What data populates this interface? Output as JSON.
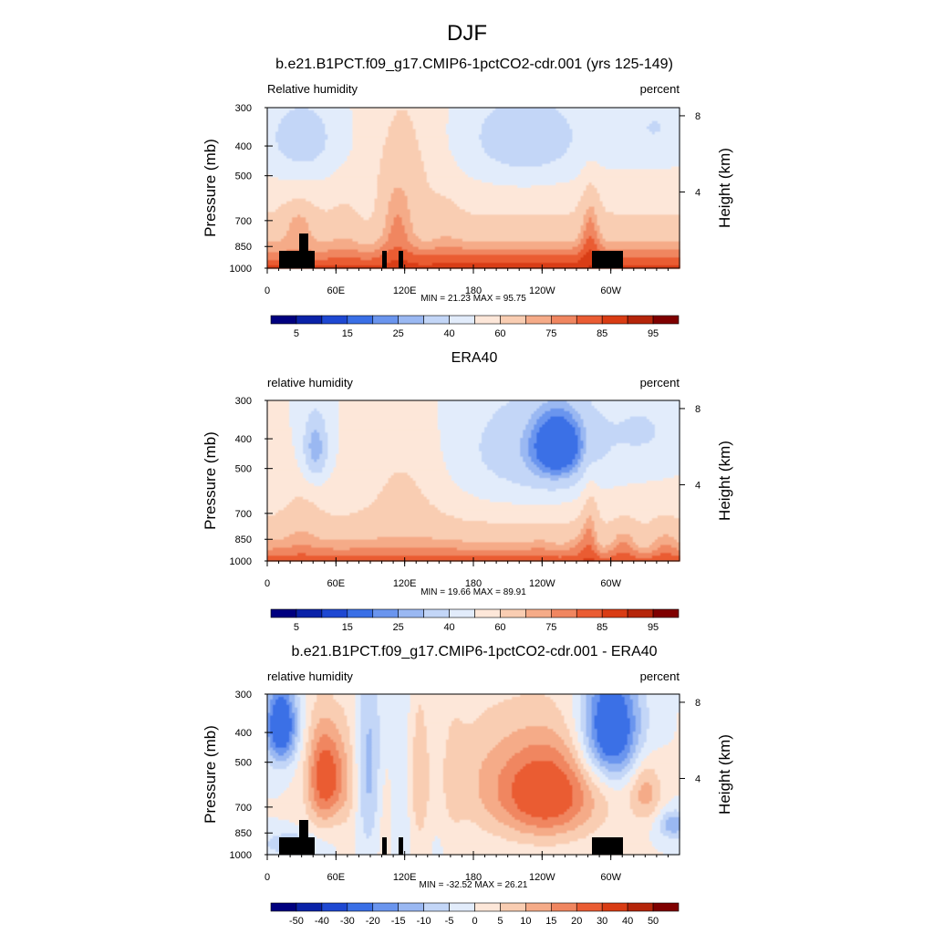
{
  "figure": {
    "title": "DJF"
  },
  "chart_data": [
    {
      "type": "heatmap",
      "title": "b.e21.B1PCT.f09_g17.CMIP6-1pctCO2-cdr.001 (yrs 125-149)",
      "variable": "Relative humidity",
      "units": "percent",
      "ylabel": "Pressure (mb)",
      "y2label": "Height (km)",
      "x_ticks": [
        "0",
        "60E",
        "120E",
        "180",
        "120W",
        "60W"
      ],
      "y_ticks": [
        "300",
        "400",
        "500",
        "700",
        "850",
        "1000"
      ],
      "y2_ticks": [
        "8",
        "4"
      ],
      "xlim": [
        0,
        360
      ],
      "ylim": [
        1000,
        300
      ],
      "stats": "MIN =  21.23  MAX =  95.75",
      "colorbar": {
        "labels": [
          "5",
          "15",
          "25",
          "40",
          "60",
          "75",
          "85",
          "95"
        ],
        "colors": [
          "#00007f",
          "#0a22a8",
          "#1e48d2",
          "#3a6fe6",
          "#6a95ee",
          "#9ab8f2",
          "#c3d6f7",
          "#e2ecfb",
          "#fde7d9",
          "#f9cdb2",
          "#f5ab88",
          "#f08660",
          "#ea5c33",
          "#d93c14",
          "#b5250a",
          "#7f0000"
        ]
      },
      "min": 21.23,
      "max": 95.75,
      "terrain": true
    },
    {
      "type": "heatmap",
      "title": "ERA40",
      "variable": "relative humidity",
      "units": "percent",
      "ylabel": "Pressure (mb)",
      "y2label": "Height (km)",
      "x_ticks": [
        "0",
        "60E",
        "120E",
        "180",
        "120W",
        "60W"
      ],
      "y_ticks": [
        "300",
        "400",
        "500",
        "700",
        "850",
        "1000"
      ],
      "y2_ticks": [
        "8",
        "4"
      ],
      "xlim": [
        0,
        360
      ],
      "ylim": [
        1000,
        300
      ],
      "stats": "MIN =  19.66  MAX =  89.91",
      "colorbar": {
        "labels": [
          "5",
          "15",
          "25",
          "40",
          "60",
          "75",
          "85",
          "95"
        ],
        "colors": [
          "#00007f",
          "#0a22a8",
          "#1e48d2",
          "#3a6fe6",
          "#6a95ee",
          "#9ab8f2",
          "#c3d6f7",
          "#e2ecfb",
          "#fde7d9",
          "#f9cdb2",
          "#f5ab88",
          "#f08660",
          "#ea5c33",
          "#d93c14",
          "#b5250a",
          "#7f0000"
        ]
      },
      "min": 19.66,
      "max": 89.91,
      "terrain": false
    },
    {
      "type": "heatmap",
      "title": "b.e21.B1PCT.f09_g17.CMIP6-1pctCO2-cdr.001 - ERA40",
      "variable": "relative humidity",
      "units": "percent",
      "ylabel": "Pressure (mb)",
      "y2label": "Height (km)",
      "x_ticks": [
        "0",
        "60E",
        "120E",
        "180",
        "120W",
        "60W"
      ],
      "y_ticks": [
        "300",
        "400",
        "500",
        "700",
        "850",
        "1000"
      ],
      "y2_ticks": [
        "8",
        "4"
      ],
      "xlim": [
        0,
        360
      ],
      "ylim": [
        1000,
        300
      ],
      "stats": "MIN = -32.52  MAX =  26.21",
      "colorbar": {
        "labels": [
          "-50",
          "-40",
          "-30",
          "-20",
          "-15",
          "-10",
          "-5",
          "0",
          "5",
          "10",
          "15",
          "20",
          "30",
          "40",
          "50"
        ],
        "colors": [
          "#00007f",
          "#0a22a8",
          "#1e48d2",
          "#3a6fe6",
          "#6a95ee",
          "#9ab8f2",
          "#c3d6f7",
          "#e2ecfb",
          "#fde7d9",
          "#f9cdb2",
          "#f5ab88",
          "#f08660",
          "#ea5c33",
          "#d93c14",
          "#b5250a",
          "#7f0000"
        ]
      },
      "min": -32.52,
      "max": 26.21,
      "terrain": true
    }
  ]
}
